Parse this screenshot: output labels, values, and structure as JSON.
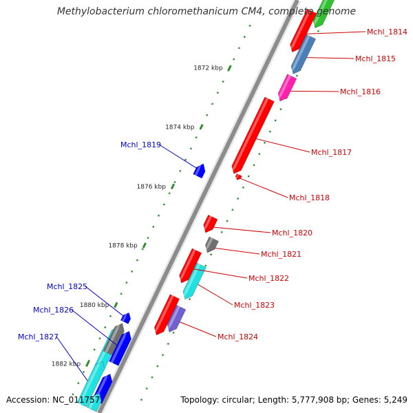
{
  "title": "Methylobacterium chloromethanicum CM4, complete genome",
  "footer": {
    "accession": "Accession: NC_011757",
    "topology": "Topology: circular; Length: 5,777,908 bp; Genes: 5,249"
  },
  "scale_labels": [
    "1872 kbp",
    "1874 kbp",
    "1876 kbp",
    "1878 kbp",
    "1880 kbp",
    "1882 kbp"
  ],
  "colors": {
    "backbone": "#8c8c8c",
    "forward_label": "#0000cc",
    "reverse_label": "#cc0000",
    "tick_dots": "#2e8b2e",
    "red": "#ff0000",
    "blue": "#0000ff",
    "cyan": "#20e0e0",
    "steelblue": "#4a7fb8",
    "magenta": "#ff20b0",
    "gray": "#707070",
    "slateblue": "#7060d0",
    "green": "#30c030"
  },
  "genes": [
    {
      "label": "Mchl_1814",
      "strand": "reverse",
      "color": "red"
    },
    {
      "label": "Mchl_1815",
      "strand": "reverse",
      "color": "steelblue"
    },
    {
      "label": "Mchl_1816",
      "strand": "reverse",
      "color": "magenta"
    },
    {
      "label": "Mchl_1817",
      "strand": "reverse",
      "color": "red"
    },
    {
      "label": "Mchl_1818",
      "strand": "reverse",
      "color": "red"
    },
    {
      "label": "Mchl_1819",
      "strand": "forward",
      "color": "blue"
    },
    {
      "label": "Mchl_1820",
      "strand": "reverse",
      "color": "red"
    },
    {
      "label": "Mchl_1821",
      "strand": "reverse",
      "color": "gray"
    },
    {
      "label": "Mchl_1822",
      "strand": "reverse",
      "color": "red"
    },
    {
      "label": "Mchl_1823",
      "strand": "reverse",
      "color": "cyan"
    },
    {
      "label": "Mchl_1824",
      "strand": "reverse",
      "color": "slateblue"
    },
    {
      "label": "Mchl_1825",
      "strand": "forward",
      "color": "blue"
    },
    {
      "label": "Mchl_1826",
      "strand": "forward",
      "color": "blue"
    },
    {
      "label": "Mchl_1827",
      "strand": "forward",
      "color": "cyan"
    }
  ]
}
